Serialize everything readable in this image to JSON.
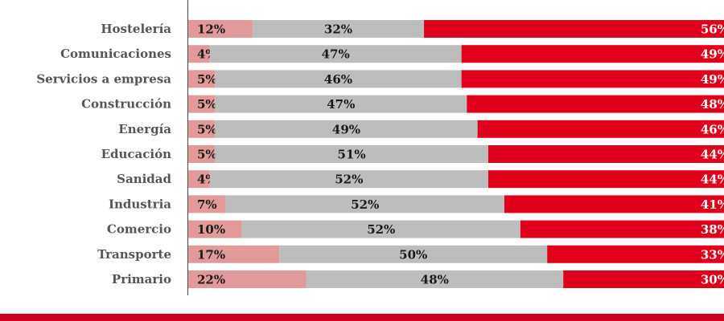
{
  "colors": {
    "low": "#e19a99",
    "mid": "#bdbdbd",
    "high": "#e0001b",
    "axis": "#555555",
    "bottom_bar": "#d0021b"
  },
  "chart_data": {
    "type": "bar",
    "orientation": "horizontal",
    "stacked": true,
    "xlim": [
      0,
      100
    ],
    "categories": [
      "Hostelería",
      "Comunicaciones",
      "Servicios a empresa",
      "Construcción",
      "Energía",
      "Educación",
      "Sanidad",
      "Industria",
      "Comercio",
      "Transporte",
      "Primario"
    ],
    "series": [
      {
        "color": "#e19a99",
        "values": [
          12,
          4,
          5,
          5,
          5,
          5,
          4,
          7,
          10,
          17,
          22
        ],
        "labels": [
          "12%",
          "4%",
          "5%",
          "5%",
          "5%",
          "5%",
          "4%",
          "7%",
          "10%",
          "17%",
          "22%"
        ]
      },
      {
        "color": "#bdbdbd",
        "values": [
          32,
          47,
          46,
          47,
          49,
          51,
          52,
          52,
          52,
          50,
          48
        ],
        "labels": [
          "32%",
          "47%",
          "46%",
          "47%",
          "49%",
          "51%",
          "52%",
          "52%",
          "52%",
          "50%",
          "48%"
        ]
      },
      {
        "color": "#e0001b",
        "values": [
          56,
          49,
          49,
          48,
          46,
          44,
          44,
          41,
          38,
          33,
          30
        ],
        "labels": [
          "56%",
          "49%",
          "49%",
          "48%",
          "46%",
          "44%",
          "44%",
          "41%",
          "38%",
          "33%",
          "30%"
        ]
      }
    ]
  }
}
